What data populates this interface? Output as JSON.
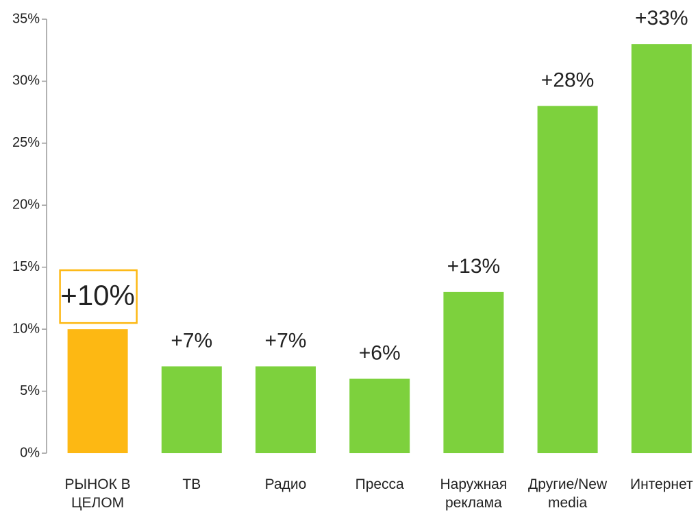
{
  "chart_data": {
    "type": "bar",
    "categories": [
      "РЫНОК В\nЦЕЛОМ",
      "ТВ",
      "Радио",
      "Пресса",
      "Наружная\nреклама",
      "Другие/New\nmedia",
      "Интернет"
    ],
    "values": [
      10,
      7,
      7,
      6,
      13,
      28,
      33
    ],
    "value_labels": [
      "+10%",
      "+7%",
      "+7%",
      "+6%",
      "+13%",
      "+28%",
      "+33%"
    ],
    "colors": [
      "#fdb813",
      "#7dd13d",
      "#7dd13d",
      "#7dd13d",
      "#7dd13d",
      "#7dd13d",
      "#7dd13d"
    ],
    "highlight": 0,
    "ylim": [
      0,
      35
    ],
    "yticks": [
      {
        "value": 0,
        "label": "0%"
      },
      {
        "value": 5,
        "label": "5%"
      },
      {
        "value": 10,
        "label": "10%"
      },
      {
        "value": 15,
        "label": "15%"
      },
      {
        "value": 20,
        "label": "20%"
      },
      {
        "value": 25,
        "label": "25%"
      },
      {
        "value": 30,
        "label": "30%"
      },
      {
        "value": 35,
        "label": "35%"
      }
    ],
    "grid": false
  }
}
